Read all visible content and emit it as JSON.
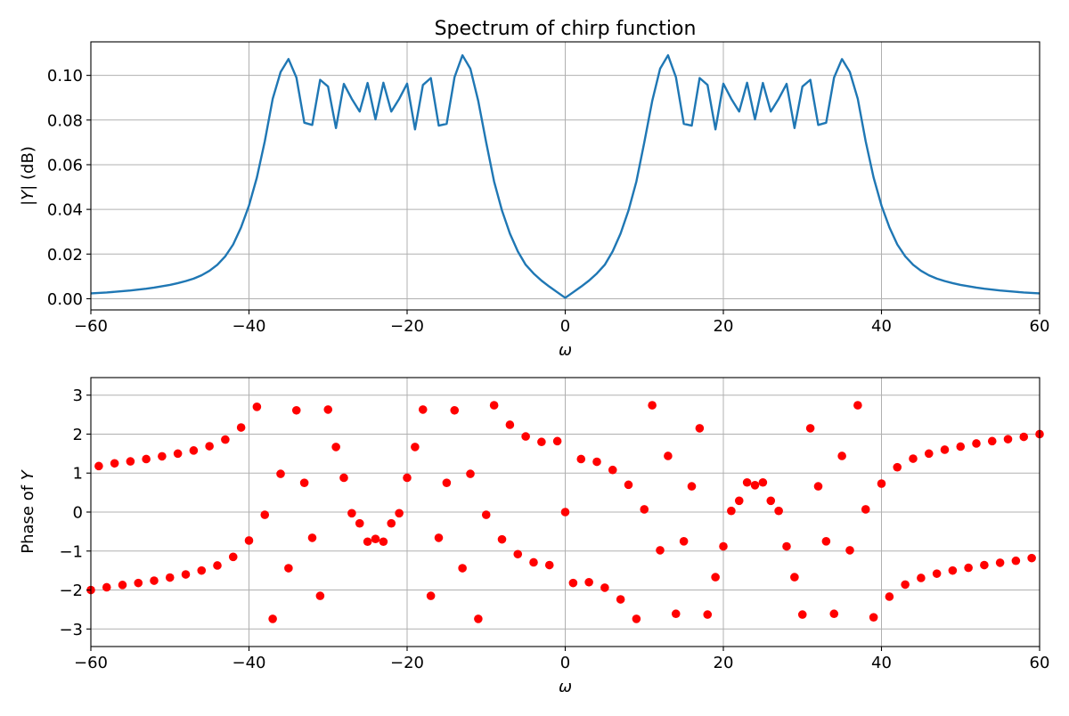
{
  "chart_data": [
    {
      "type": "line",
      "title": "Spectrum of chirp function",
      "xlabel": "ω",
      "ylabel": "|Y| (dB)",
      "xlim": [
        -60,
        60
      ],
      "ylim": [
        -0.005,
        0.115
      ],
      "xticks": [
        -60,
        -40,
        -20,
        0,
        20,
        40,
        60
      ],
      "xtick_labels": [
        "−60",
        "−40",
        "−20",
        "0",
        "20",
        "40",
        "60"
      ],
      "yticks": [
        0.0,
        0.02,
        0.04,
        0.06,
        0.08,
        0.1
      ],
      "ytick_labels": [
        "0.00",
        "0.02",
        "0.04",
        "0.06",
        "0.08",
        "0.10"
      ],
      "grid": true,
      "color": "#1f77b4",
      "series": [
        {
          "x": [
            -60,
            -59,
            -58,
            -57,
            -56,
            -55,
            -54,
            -53,
            -52,
            -51,
            -50,
            -49,
            -48,
            -47,
            -46,
            -45,
            -44,
            -43,
            -42,
            -41,
            -40,
            -39,
            -38,
            -37,
            -36,
            -35,
            -34,
            -33,
            -32,
            -31,
            -30,
            -29,
            -28,
            -27,
            -26,
            -25,
            -24,
            -23,
            -22,
            -21,
            -20,
            -19,
            -18,
            -17,
            -16,
            -15,
            -14,
            -13,
            -12,
            -11,
            -10,
            -9,
            -8,
            -7,
            -6,
            -5,
            -4,
            -3,
            -2,
            -1,
            0,
            1,
            2,
            3,
            4,
            5,
            6,
            7,
            8,
            9,
            10,
            11,
            12,
            13,
            14,
            15,
            16,
            17,
            18,
            19,
            20,
            21,
            22,
            23,
            24,
            25,
            26,
            27,
            28,
            29,
            30,
            31,
            32,
            33,
            34,
            35,
            36,
            37,
            38,
            39,
            40,
            41,
            42,
            43,
            44,
            45,
            46,
            47,
            48,
            49,
            50,
            51,
            52,
            53,
            54,
            55,
            56,
            57,
            58,
            59,
            60
          ],
          "values": [
            0.0024,
            0.0026,
            0.0028,
            0.0031,
            0.0034,
            0.0037,
            0.0041,
            0.0045,
            0.005,
            0.0056,
            0.0062,
            0.007,
            0.0079,
            0.009,
            0.0105,
            0.0125,
            0.0152,
            0.019,
            0.0243,
            0.032,
            0.0417,
            0.0543,
            0.0705,
            0.0895,
            0.1015,
            0.1073,
            0.099,
            0.0788,
            0.0778,
            0.098,
            0.095,
            0.0764,
            0.0962,
            0.0895,
            0.0838,
            0.0966,
            0.0803,
            0.0967,
            0.0838,
            0.0895,
            0.0963,
            0.0758,
            0.0957,
            0.0988,
            0.0775,
            0.0783,
            0.0992,
            0.109,
            0.103,
            0.0885,
            0.07,
            0.0525,
            0.0395,
            0.0292,
            0.0212,
            0.0152,
            0.0113,
            0.0081,
            0.0054,
            0.0029,
            0.0004,
            0.0029,
            0.0054,
            0.0081,
            0.0113,
            0.0152,
            0.0212,
            0.0292,
            0.0395,
            0.0525,
            0.07,
            0.0885,
            0.103,
            0.109,
            0.0992,
            0.0783,
            0.0775,
            0.0988,
            0.0957,
            0.0758,
            0.0963,
            0.0895,
            0.0838,
            0.0967,
            0.0803,
            0.0966,
            0.0838,
            0.0895,
            0.0962,
            0.0764,
            0.095,
            0.098,
            0.0778,
            0.0788,
            0.099,
            0.1073,
            0.1015,
            0.0895,
            0.0705,
            0.0543,
            0.0417,
            0.032,
            0.0243,
            0.019,
            0.0152,
            0.0125,
            0.0105,
            0.009,
            0.0079,
            0.007,
            0.0062,
            0.0056,
            0.005,
            0.0045,
            0.0041,
            0.0037,
            0.0034,
            0.0031,
            0.0028,
            0.0026,
            0.0024
          ]
        }
      ]
    },
    {
      "type": "scatter",
      "title": "",
      "xlabel": "ω",
      "ylabel": "Phase of Y",
      "xlim": [
        -60,
        60
      ],
      "ylim": [
        -3.45,
        3.45
      ],
      "xticks": [
        -60,
        -40,
        -20,
        0,
        20,
        40,
        60
      ],
      "xtick_labels": [
        "−60",
        "−40",
        "−20",
        "0",
        "20",
        "40",
        "60"
      ],
      "yticks": [
        -3,
        -2,
        -1,
        0,
        1,
        2,
        3
      ],
      "ytick_labels": [
        "−3",
        "−2",
        "−1",
        "0",
        "1",
        "2",
        "3"
      ],
      "grid": true,
      "color": "#ff0000",
      "series": [
        {
          "x": [
            -60,
            -59,
            -58,
            -57,
            -56,
            -55,
            -54,
            -53,
            -52,
            -51,
            -50,
            -49,
            -48,
            -47,
            -46,
            -45,
            -44,
            -43,
            -42,
            -41,
            -40,
            -39,
            -38,
            -37,
            -36,
            -35,
            -34,
            -33,
            -32,
            -31,
            -30,
            -29,
            -28,
            -27,
            -26,
            -25,
            -24,
            -23,
            -22,
            -21,
            -20,
            -19,
            -18,
            -17,
            -16,
            -15,
            -14,
            -13,
            -12,
            -11,
            -10,
            -9,
            -8,
            -7,
            -6,
            -5,
            -4,
            -3,
            -2,
            -1,
            0,
            1,
            2,
            3,
            4,
            5,
            6,
            7,
            8,
            9,
            10,
            11,
            12,
            13,
            14,
            15,
            16,
            17,
            18,
            19,
            20,
            21,
            22,
            23,
            24,
            25,
            26,
            27,
            28,
            29,
            30,
            31,
            32,
            33,
            34,
            35,
            36,
            37,
            38,
            39,
            40,
            41,
            42,
            43,
            44,
            45,
            46,
            47,
            48,
            49,
            50,
            51,
            52,
            53,
            54,
            55,
            56,
            57,
            58,
            59,
            60
          ],
          "values": [
            -2.0,
            1.18,
            -1.93,
            1.25,
            -1.87,
            1.3,
            -1.82,
            1.36,
            -1.76,
            1.43,
            -1.68,
            1.5,
            -1.6,
            1.58,
            -1.5,
            1.69,
            -1.37,
            1.86,
            -1.15,
            2.17,
            -0.73,
            2.7,
            -0.07,
            -2.74,
            0.98,
            -1.44,
            2.61,
            0.75,
            -0.66,
            -2.15,
            2.63,
            1.67,
            0.88,
            -0.03,
            -0.29,
            -0.76,
            -0.69,
            -0.76,
            -0.29,
            -0.03,
            0.88,
            1.67,
            2.63,
            -2.15,
            -0.66,
            0.75,
            2.61,
            -1.44,
            0.98,
            -2.74,
            -0.07,
            2.74,
            -0.7,
            2.24,
            -1.08,
            1.94,
            -1.29,
            1.8,
            -1.36,
            1.82,
            0.0,
            -1.82,
            1.36,
            -1.8,
            1.29,
            -1.94,
            1.08,
            -2.24,
            0.7,
            -2.74,
            0.07,
            2.74,
            -0.98,
            1.44,
            -2.61,
            -0.75,
            0.66,
            2.15,
            -2.63,
            -1.67,
            -0.88,
            0.03,
            0.29,
            0.76,
            0.69,
            0.76,
            0.29,
            0.03,
            -0.88,
            -1.67,
            -2.63,
            2.15,
            0.66,
            -0.75,
            -2.61,
            1.44,
            -0.98,
            2.74,
            0.07,
            -2.7,
            0.73,
            -2.17,
            1.15,
            -1.86,
            1.37,
            -1.69,
            1.5,
            -1.58,
            1.6,
            -1.5,
            1.68,
            -1.43,
            1.76,
            -1.36,
            1.82,
            -1.3,
            1.87,
            -1.25,
            1.93,
            -1.18,
            2.0
          ]
        }
      ]
    }
  ]
}
